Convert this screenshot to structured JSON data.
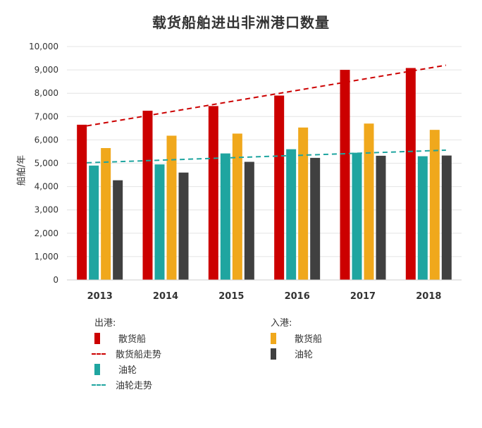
{
  "chart_data": {
    "type": "bar",
    "title": "载货船舶进出非洲港口数量",
    "ylabel": "船舶/年",
    "xlabel": "",
    "ylim": [
      0,
      10000
    ],
    "yticks": [
      "0",
      "1,000",
      "2,000",
      "3,000",
      "4,000",
      "5,000",
      "6,000",
      "7,000",
      "8,000",
      "9,000",
      "10,000"
    ],
    "categories": [
      "2013",
      "2014",
      "2015",
      "2016",
      "2017",
      "2018"
    ],
    "series": [
      {
        "name": "散货船",
        "group": "出港",
        "color": "#cc0000",
        "values": [
          6650,
          7250,
          7450,
          7900,
          9000,
          9080
        ]
      },
      {
        "name": "油轮",
        "group": "出港",
        "color": "#1fa5a0",
        "values": [
          4900,
          4950,
          5420,
          5600,
          5450,
          5300
        ]
      },
      {
        "name": "散货船",
        "group": "入港",
        "color": "#f0a81c",
        "values": [
          5650,
          6180,
          6270,
          6530,
          6700,
          6430
        ]
      },
      {
        "name": "油轮",
        "group": "入港",
        "color": "#404040",
        "values": [
          4270,
          4600,
          5060,
          5230,
          5320,
          5330
        ]
      }
    ],
    "trendlines": [
      {
        "name": "散货船走势",
        "color": "#cc0000",
        "start": 6600,
        "end": 9200
      },
      {
        "name": "油轮走势",
        "color": "#1fa5a0",
        "start": 5020,
        "end": 5560
      }
    ],
    "grid": true
  },
  "legend": {
    "out_heading": "出港:",
    "in_heading": "入港:",
    "out_items": [
      {
        "label": "散货船",
        "kind": "bar",
        "color": "#cc0000"
      },
      {
        "label": "散货船走势",
        "kind": "dash",
        "color": "#cc0000"
      },
      {
        "label": "油轮",
        "kind": "bar",
        "color": "#1fa5a0"
      },
      {
        "label": "油轮走势",
        "kind": "dash",
        "color": "#1fa5a0"
      }
    ],
    "in_items": [
      {
        "label": "散货船",
        "kind": "bar",
        "color": "#f0a81c"
      },
      {
        "label": "油轮",
        "kind": "bar",
        "color": "#404040"
      }
    ]
  }
}
